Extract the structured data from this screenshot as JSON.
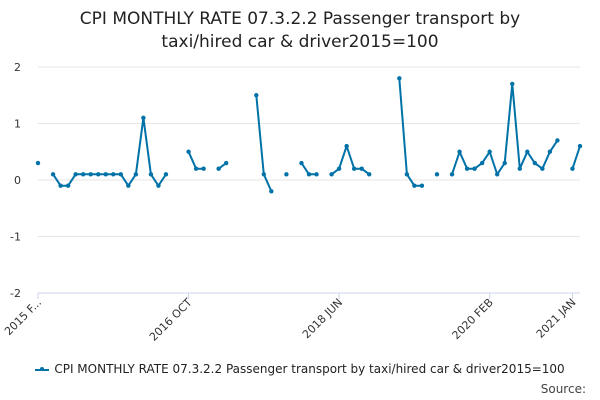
{
  "chart_data": {
    "type": "line",
    "title_line1": "CPI MONTHLY RATE 07.3.2.2 Passenger transport by",
    "title_line2": "taxi/hired car & driver2015=100",
    "ylim": [
      -2,
      2
    ],
    "yticks": [
      "2",
      "1",
      "0",
      "-1",
      "-2"
    ],
    "ytick_values": [
      2,
      1,
      0,
      -1,
      -2
    ],
    "xticks": [
      {
        "label": "2015 F...",
        "index": 0
      },
      {
        "label": "2016 OCT",
        "index": 20
      },
      {
        "label": "2018 JUN",
        "index": 40
      },
      {
        "label": "2020 FEB",
        "index": 60
      },
      {
        "label": "2021 JAN",
        "index": 71
      }
    ],
    "grid": true,
    "legend_position": "bottom",
    "series": [
      {
        "name": "CPI MONTHLY RATE 07.3.2.2 Passenger transport by taxi/hired car & driver2015=100",
        "color": "#0072A8",
        "values": [
          0.3,
          null,
          0.1,
          -0.1,
          -0.1,
          0.1,
          0.1,
          0.1,
          0.1,
          0.1,
          0.1,
          0.1,
          -0.1,
          0.1,
          1.1,
          0.1,
          -0.1,
          0.1,
          null,
          null,
          0.5,
          0.2,
          0.2,
          null,
          0.2,
          0.3,
          null,
          null,
          null,
          1.5,
          0.1,
          -0.2,
          null,
          0.1,
          null,
          0.3,
          0.1,
          0.1,
          null,
          0.1,
          0.2,
          0.6,
          0.2,
          0.2,
          0.1,
          null,
          null,
          null,
          1.8,
          0.1,
          -0.1,
          -0.1,
          null,
          0.1,
          null,
          0.1,
          0.5,
          0.2,
          0.2,
          0.3,
          0.5,
          0.1,
          0.3,
          1.7,
          0.2,
          0.5,
          0.3,
          0.2,
          0.5,
          0.7,
          null,
          0.2,
          0.6
        ]
      }
    ]
  },
  "source_label": "Source:"
}
